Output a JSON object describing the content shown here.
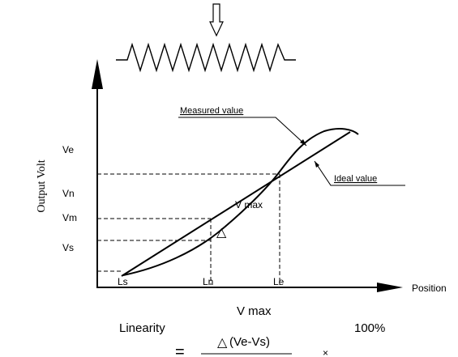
{
  "diagram": {
    "axis_y_label": "Output  Volt",
    "axis_x_label": "Position",
    "y_ticks": {
      "ve": "Ve",
      "vn": "Vn",
      "vm": "Vm",
      "vs": "Vs"
    },
    "x_ticks": {
      "ls": "Ls",
      "ln": "Ln",
      "le": "Le"
    },
    "measured_label": "Measured  value",
    "ideal_label": "Ideal  value",
    "vmax_label": "V max",
    "delta_symbol": "△"
  },
  "formula": {
    "left": "Linearity",
    "equals": "=",
    "numerator": "V max",
    "denominator": "(Ve-Vs)",
    "delta": "△",
    "times": "×",
    "right": "100%"
  }
}
